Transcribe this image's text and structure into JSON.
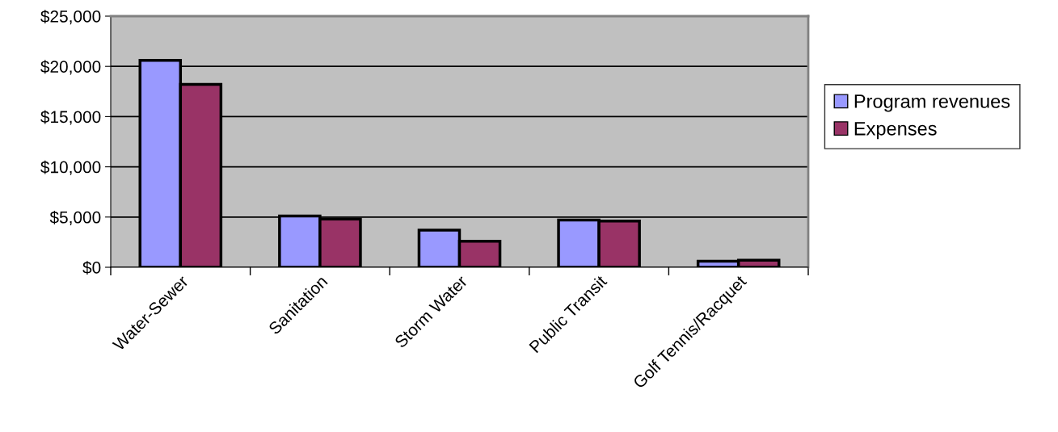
{
  "chart_data": {
    "type": "bar",
    "categories": [
      "Water-Sewer",
      "Sanitation",
      "Storm Water",
      "Public Transit",
      "Golf Tennis/Racquet"
    ],
    "series": [
      {
        "name": "Program revenues",
        "color": "#9999ff",
        "values": [
          20600,
          5100,
          3700,
          4700,
          600
        ]
      },
      {
        "name": "Expenses",
        "color": "#993366",
        "values": [
          18200,
          4800,
          2600,
          4600,
          700
        ]
      }
    ],
    "ylim": [
      0,
      25000
    ],
    "yticks": [
      {
        "value": 0,
        "label": "$0"
      },
      {
        "value": 5000,
        "label": "$5,000"
      },
      {
        "value": 10000,
        "label": "$10,000"
      },
      {
        "value": 15000,
        "label": "$15,000"
      },
      {
        "value": 20000,
        "label": "$20,000"
      },
      {
        "value": 25000,
        "label": "$25,000"
      }
    ],
    "grid": "y",
    "legend": "right"
  }
}
